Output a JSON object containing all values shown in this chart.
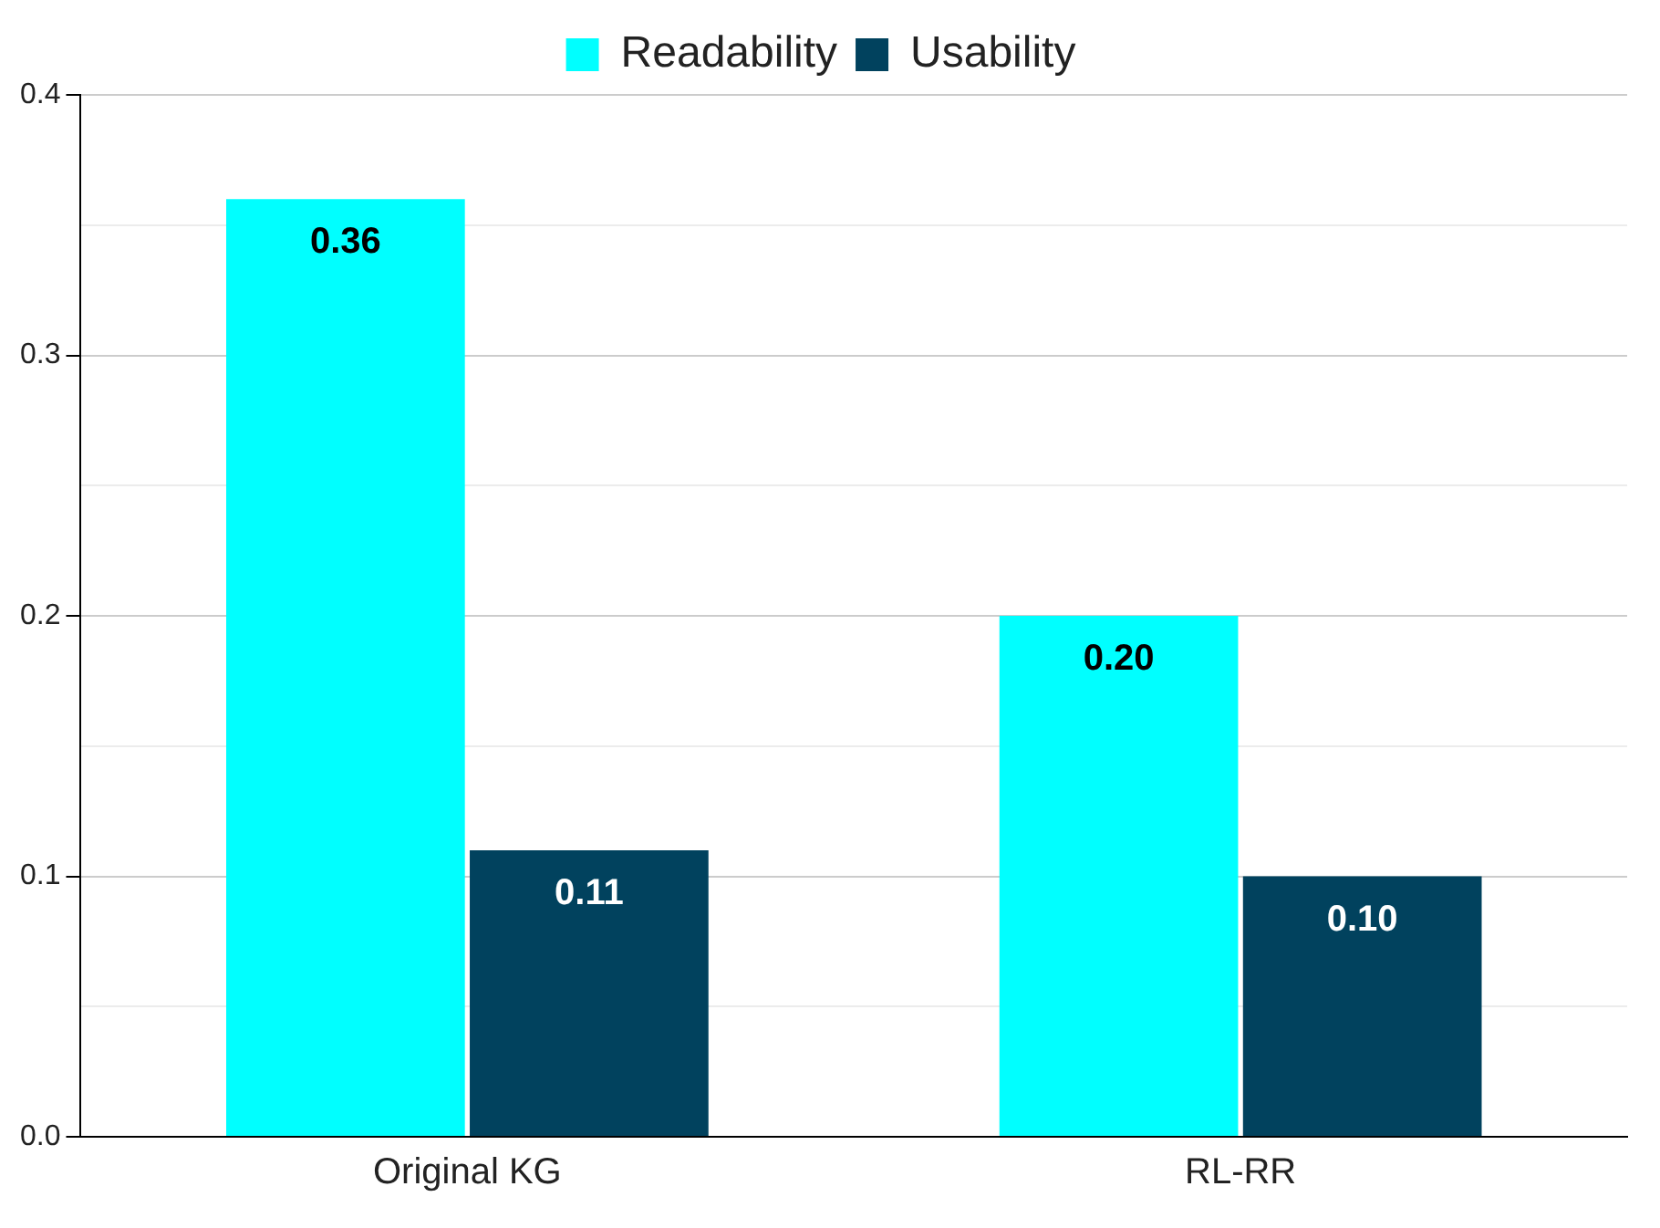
{
  "chart_data": {
    "type": "bar",
    "categories": [
      "Original KG",
      "RL-RR"
    ],
    "series": [
      {
        "name": "Readability",
        "color": "#00ffff",
        "values": [
          0.36,
          0.2
        ],
        "value_labels": [
          "0.36",
          "0.20"
        ]
      },
      {
        "name": "Usability",
        "color": "#01425e",
        "values": [
          0.11,
          0.1
        ],
        "value_labels": [
          "0.11",
          "0.10"
        ]
      }
    ],
    "ylim": [
      0,
      0.4
    ],
    "yticks": [
      {
        "value": 0,
        "label": "0.0"
      },
      {
        "value": 0.05,
        "label": null
      },
      0.1,
      {
        "value": 0.15,
        "label": null
      },
      0.2,
      {
        "value": 0.25,
        "label": null
      },
      0.3,
      {
        "value": 0.35,
        "label": null
      },
      0.4
    ],
    "grid": "y",
    "legend": "top"
  }
}
